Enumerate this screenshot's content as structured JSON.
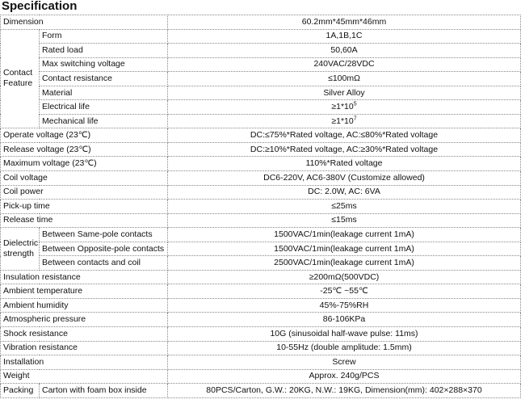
{
  "title": "Specification",
  "rows": [
    {
      "label": "Dimension",
      "value": "60.2mm*45mm*46mm"
    },
    {
      "label": "Operate voltage (23℃)",
      "value": "DC:≤75%*Rated voltage, AC:≤80%*Rated voltage"
    },
    {
      "label": "Release voltage (23℃)",
      "value": "DC:≥10%*Rated voltage, AC:≥30%*Rated voltage"
    },
    {
      "label": "Maximum voltage (23℃)",
      "value": "110%*Rated voltage"
    },
    {
      "label": "Coil voltage",
      "value": "DC6-220V, AC6-380V (Customize allowed)"
    },
    {
      "label": "Coil power",
      "value": "DC: 2.0W, AC: 6VA"
    },
    {
      "label": "Pick-up time",
      "value": "≤25ms"
    },
    {
      "label": "Release time",
      "value": "≤15ms"
    },
    {
      "label": "Insulation resistance",
      "value": "≥200mΩ(500VDC)"
    },
    {
      "label": "Ambient temperature",
      "value": "-25℃ ~55℃"
    },
    {
      "label": "Ambient humidity",
      "value": "45%-75%RH"
    },
    {
      "label": "Atmospheric pressure",
      "value": "86-106KPa"
    },
    {
      "label": "Shock resistance",
      "value": "10G (sinusoidal half-wave pulse: 11ms)"
    },
    {
      "label": "Vibration resistance",
      "value": "10-55Hz (double amplitude: 1.5mm)"
    },
    {
      "label": "Installation",
      "value": "Screw"
    },
    {
      "label": "Weight",
      "value": "Approx. 240g/PCS"
    }
  ],
  "contact": {
    "group": "Contact Feature",
    "items": [
      {
        "label": "Form",
        "value": "1A,1B,1C"
      },
      {
        "label": "Rated load",
        "value": "50,60A"
      },
      {
        "label": "Max switching voltage",
        "value": "240VAC/28VDC"
      },
      {
        "label": "Contact resistance",
        "value": "≤100mΩ"
      },
      {
        "label": "Material",
        "value": "Silver Alloy"
      },
      {
        "label": "Electrical life",
        "value": "≥1*10",
        "exp": "5"
      },
      {
        "label": "Mechanical life",
        "value": "≥1*10",
        "exp": "7"
      }
    ]
  },
  "dielectric": {
    "group": "Dielectric strength",
    "items": [
      {
        "label": "Between Same-pole contacts",
        "value": "1500VAC/1min(leakage current 1mA)"
      },
      {
        "label": "Between Opposite-pole contacts",
        "value": "1500VAC/1min(leakage current 1mA)"
      },
      {
        "label": "Between contacts and coil",
        "value": "2500VAC/1min(leakage current 1mA)"
      }
    ]
  },
  "packing": {
    "label": "Packing",
    "sub": "Carton with foam box inside",
    "value": "80PCS/Carton, G.W.: 20KG, N.W.: 19KG, Dimension(mm): 402×288×370"
  }
}
